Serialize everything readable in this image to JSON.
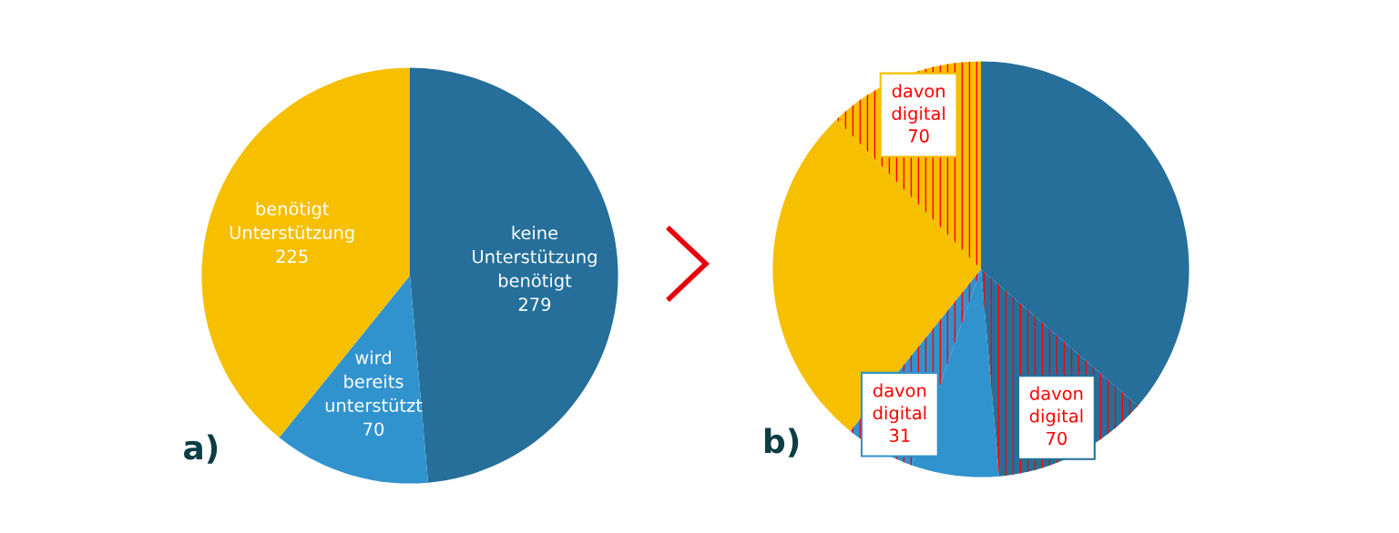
{
  "chart_data": [
    {
      "type": "pie",
      "categories": [
        "keine Unterstützung benötigt",
        "wird bereits unterstützt",
        "benötigt Unterstützung"
      ],
      "values": [
        279,
        70,
        225
      ],
      "colors": [
        "#256f9a",
        "#3193cd",
        "#f6bf00"
      ],
      "data_labels": true,
      "annotations": [
        "a)"
      ]
    },
    {
      "type": "pie",
      "categories": [
        null,
        null,
        null,
        null,
        null,
        null
      ],
      "values": [
        209,
        70,
        39,
        31,
        155,
        70
      ],
      "colors": [
        "#256f9a",
        "#256f9a",
        "#3193cd",
        "#3193cd",
        "#f6bf00",
        "#f6bf00"
      ],
      "value_labels": [
        null,
        "davon digital 70",
        null,
        "davon digital 31",
        null,
        "davon digital 70"
      ],
      "annotations": [
        "b)"
      ]
    }
  ]
}
